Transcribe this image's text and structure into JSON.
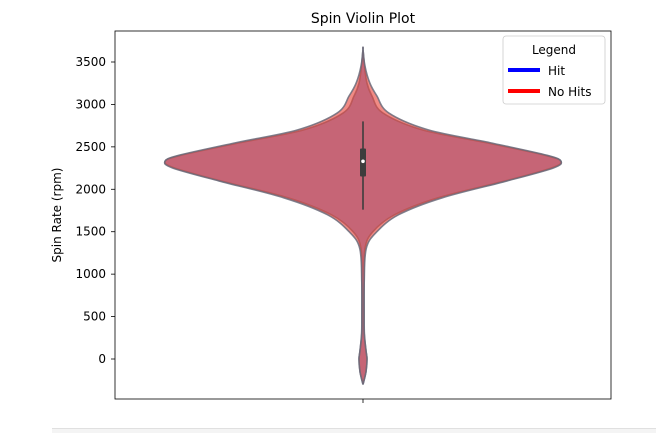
{
  "chart_data": {
    "type": "violin",
    "title": "Spin Violin Plot",
    "xlabel": "",
    "ylabel": "Spin Rate (rpm)",
    "ylim": [
      -470,
      3870
    ],
    "yticks": [
      0,
      500,
      1000,
      1500,
      2000,
      2500,
      3000,
      3500
    ],
    "grid": false,
    "legend": {
      "title": "Legend",
      "placement": "top-right",
      "entries": [
        {
          "label": "Hit",
          "color": "#0000ff"
        },
        {
          "label": "No Hits",
          "color": "#ff0000"
        }
      ]
    },
    "series": [
      {
        "name": "Hit",
        "color": "#4a5fc0",
        "density": [
          [
            -300,
            0.0
          ],
          [
            -150,
            0.015
          ],
          [
            0,
            0.02
          ],
          [
            100,
            0.015
          ],
          [
            300,
            0.007
          ],
          [
            500,
            0.006
          ],
          [
            900,
            0.006
          ],
          [
            1300,
            0.01
          ],
          [
            1500,
            0.05
          ],
          [
            1700,
            0.16
          ],
          [
            1900,
            0.38
          ],
          [
            2100,
            0.72
          ],
          [
            2250,
            0.95
          ],
          [
            2330,
            1.0
          ],
          [
            2400,
            0.92
          ],
          [
            2550,
            0.62
          ],
          [
            2700,
            0.3
          ],
          [
            2900,
            0.1
          ],
          [
            3100,
            0.045
          ],
          [
            3250,
            0.02
          ],
          [
            3450,
            0.008
          ],
          [
            3650,
            0.0
          ]
        ]
      },
      {
        "name": "No Hits",
        "color": "#e8443a",
        "density": [
          [
            -300,
            0.0
          ],
          [
            -150,
            0.015
          ],
          [
            0,
            0.02
          ],
          [
            100,
            0.015
          ],
          [
            300,
            0.006
          ],
          [
            500,
            0.005
          ],
          [
            900,
            0.006
          ],
          [
            1300,
            0.016
          ],
          [
            1500,
            0.07
          ],
          [
            1700,
            0.18
          ],
          [
            1900,
            0.4
          ],
          [
            2100,
            0.73
          ],
          [
            2250,
            0.96
          ],
          [
            2330,
            1.0
          ],
          [
            2400,
            0.93
          ],
          [
            2550,
            0.64
          ],
          [
            2700,
            0.33
          ],
          [
            2900,
            0.13
          ],
          [
            3100,
            0.07
          ],
          [
            3250,
            0.035
          ],
          [
            3450,
            0.01
          ],
          [
            3650,
            0.0
          ]
        ]
      }
    ],
    "box": {
      "q1": 2150,
      "median": 2330,
      "q3": 2480,
      "whisker_low": 1760,
      "whisker_high": 2800
    }
  }
}
